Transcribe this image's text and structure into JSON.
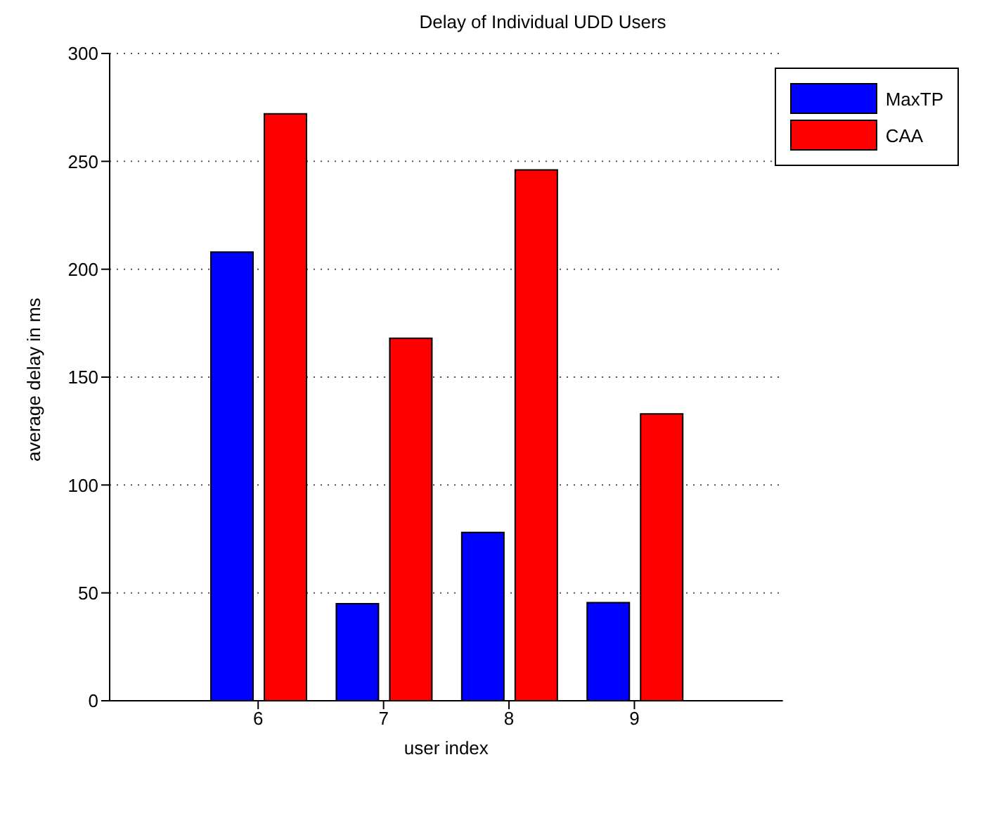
{
  "chart_data": {
    "type": "bar",
    "title": "Delay of Individual UDD Users",
    "xlabel": "user index",
    "ylabel": "average delay in ms",
    "categories": [
      "6",
      "7",
      "8",
      "9"
    ],
    "series": [
      {
        "name": "MaxTP",
        "color": "#0000ff",
        "values": [
          208,
          45,
          78,
          45.5
        ]
      },
      {
        "name": "CAA",
        "color": "#ff0000",
        "values": [
          272,
          168,
          246,
          133
        ]
      }
    ],
    "ylim": [
      0,
      300
    ],
    "yticks": [
      0,
      50,
      100,
      150,
      200,
      250,
      300
    ],
    "grid": "y",
    "legend": "top right"
  }
}
